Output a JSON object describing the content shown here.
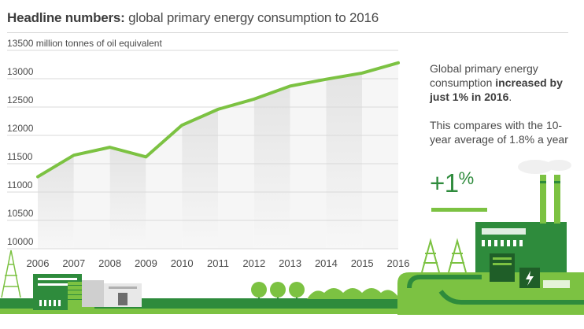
{
  "headline": {
    "bold": "Headline numbers:",
    "rest": " global primary energy consumption to 2016"
  },
  "side_text": {
    "p1_before": "Global primary energy consumption ",
    "p1_bold": "increased by just 1% in 2016",
    "p1_after": ".",
    "p2": "This compares with the 10-year average of 1.8% a year",
    "big_change": "+1",
    "big_change_pct": "%"
  },
  "colors": {
    "line": "#7cc242",
    "accent": "#7cc242",
    "dark_green": "#2e8b3c",
    "gridline": "#d9d9d9"
  },
  "chart_data": {
    "type": "line",
    "unit_label": "million tonnes of oil equivalent",
    "ylim": [
      10000,
      13500
    ],
    "yticks": [
      10000,
      10500,
      11000,
      11500,
      12000,
      12500,
      13000,
      13500
    ],
    "x": [
      "2006",
      "2007",
      "2008",
      "2009",
      "2010",
      "2011",
      "2012",
      "2013",
      "2014",
      "2015",
      "2016"
    ],
    "series": [
      {
        "values": [
          11270,
          11650,
          11790,
          11620,
          12180,
          12460,
          12640,
          12870,
          12990,
          13100,
          13280
        ]
      }
    ],
    "grid": true
  }
}
